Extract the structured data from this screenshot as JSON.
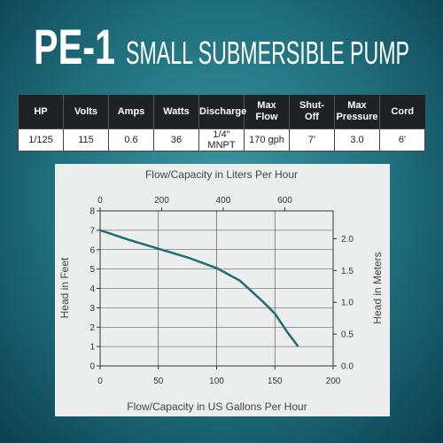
{
  "header": {
    "model": "PE-1",
    "title": "SMALL SUBMERSIBLE PUMP"
  },
  "table": {
    "columns": [
      "HP",
      "Volts",
      "Amps",
      "Watts",
      "Discharge",
      "Max Flow",
      "Shut-Off",
      "Max Pressure",
      "Cord"
    ],
    "rows": [
      [
        "1/125",
        "115",
        "0.6",
        "36",
        "1/4\" MNPT",
        "170 gph",
        "7'",
        "3.0",
        "6'"
      ]
    ]
  },
  "chart_data": {
    "type": "line",
    "x_label": "Flow/Capacity in US Gallons Per Hour",
    "x2_label": "Flow/Capacity in Liters Per Hour",
    "y_label": "Head in Feet",
    "y2_label": "Head in Meters",
    "x": [
      0,
      25,
      50,
      75,
      100,
      120,
      140,
      150,
      160,
      170
    ],
    "values": [
      7.0,
      6.5,
      6.05,
      5.6,
      5.05,
      4.4,
      3.3,
      2.7,
      1.8,
      1.0
    ],
    "color": "#1d6e73",
    "xlim": [
      0,
      200
    ],
    "xticks": [
      0,
      50,
      100,
      150,
      200
    ],
    "x2lim": [
      0,
      757.08
    ],
    "x2ticks": [
      0,
      200,
      400,
      600
    ],
    "ylim": [
      0,
      8
    ],
    "yticks": [
      0,
      1,
      2,
      3,
      4,
      5,
      6,
      7,
      8
    ],
    "y2lim": [
      0,
      2.438
    ],
    "y2ticks": [
      {
        "value": 0,
        "label": "0.0"
      },
      {
        "value": 0.5,
        "label": "0.5"
      },
      {
        "value": 1,
        "label": "1.0"
      },
      {
        "value": 1.5,
        "label": "1.5"
      },
      {
        "value": 2,
        "label": "2.0"
      }
    ],
    "grid": true
  }
}
